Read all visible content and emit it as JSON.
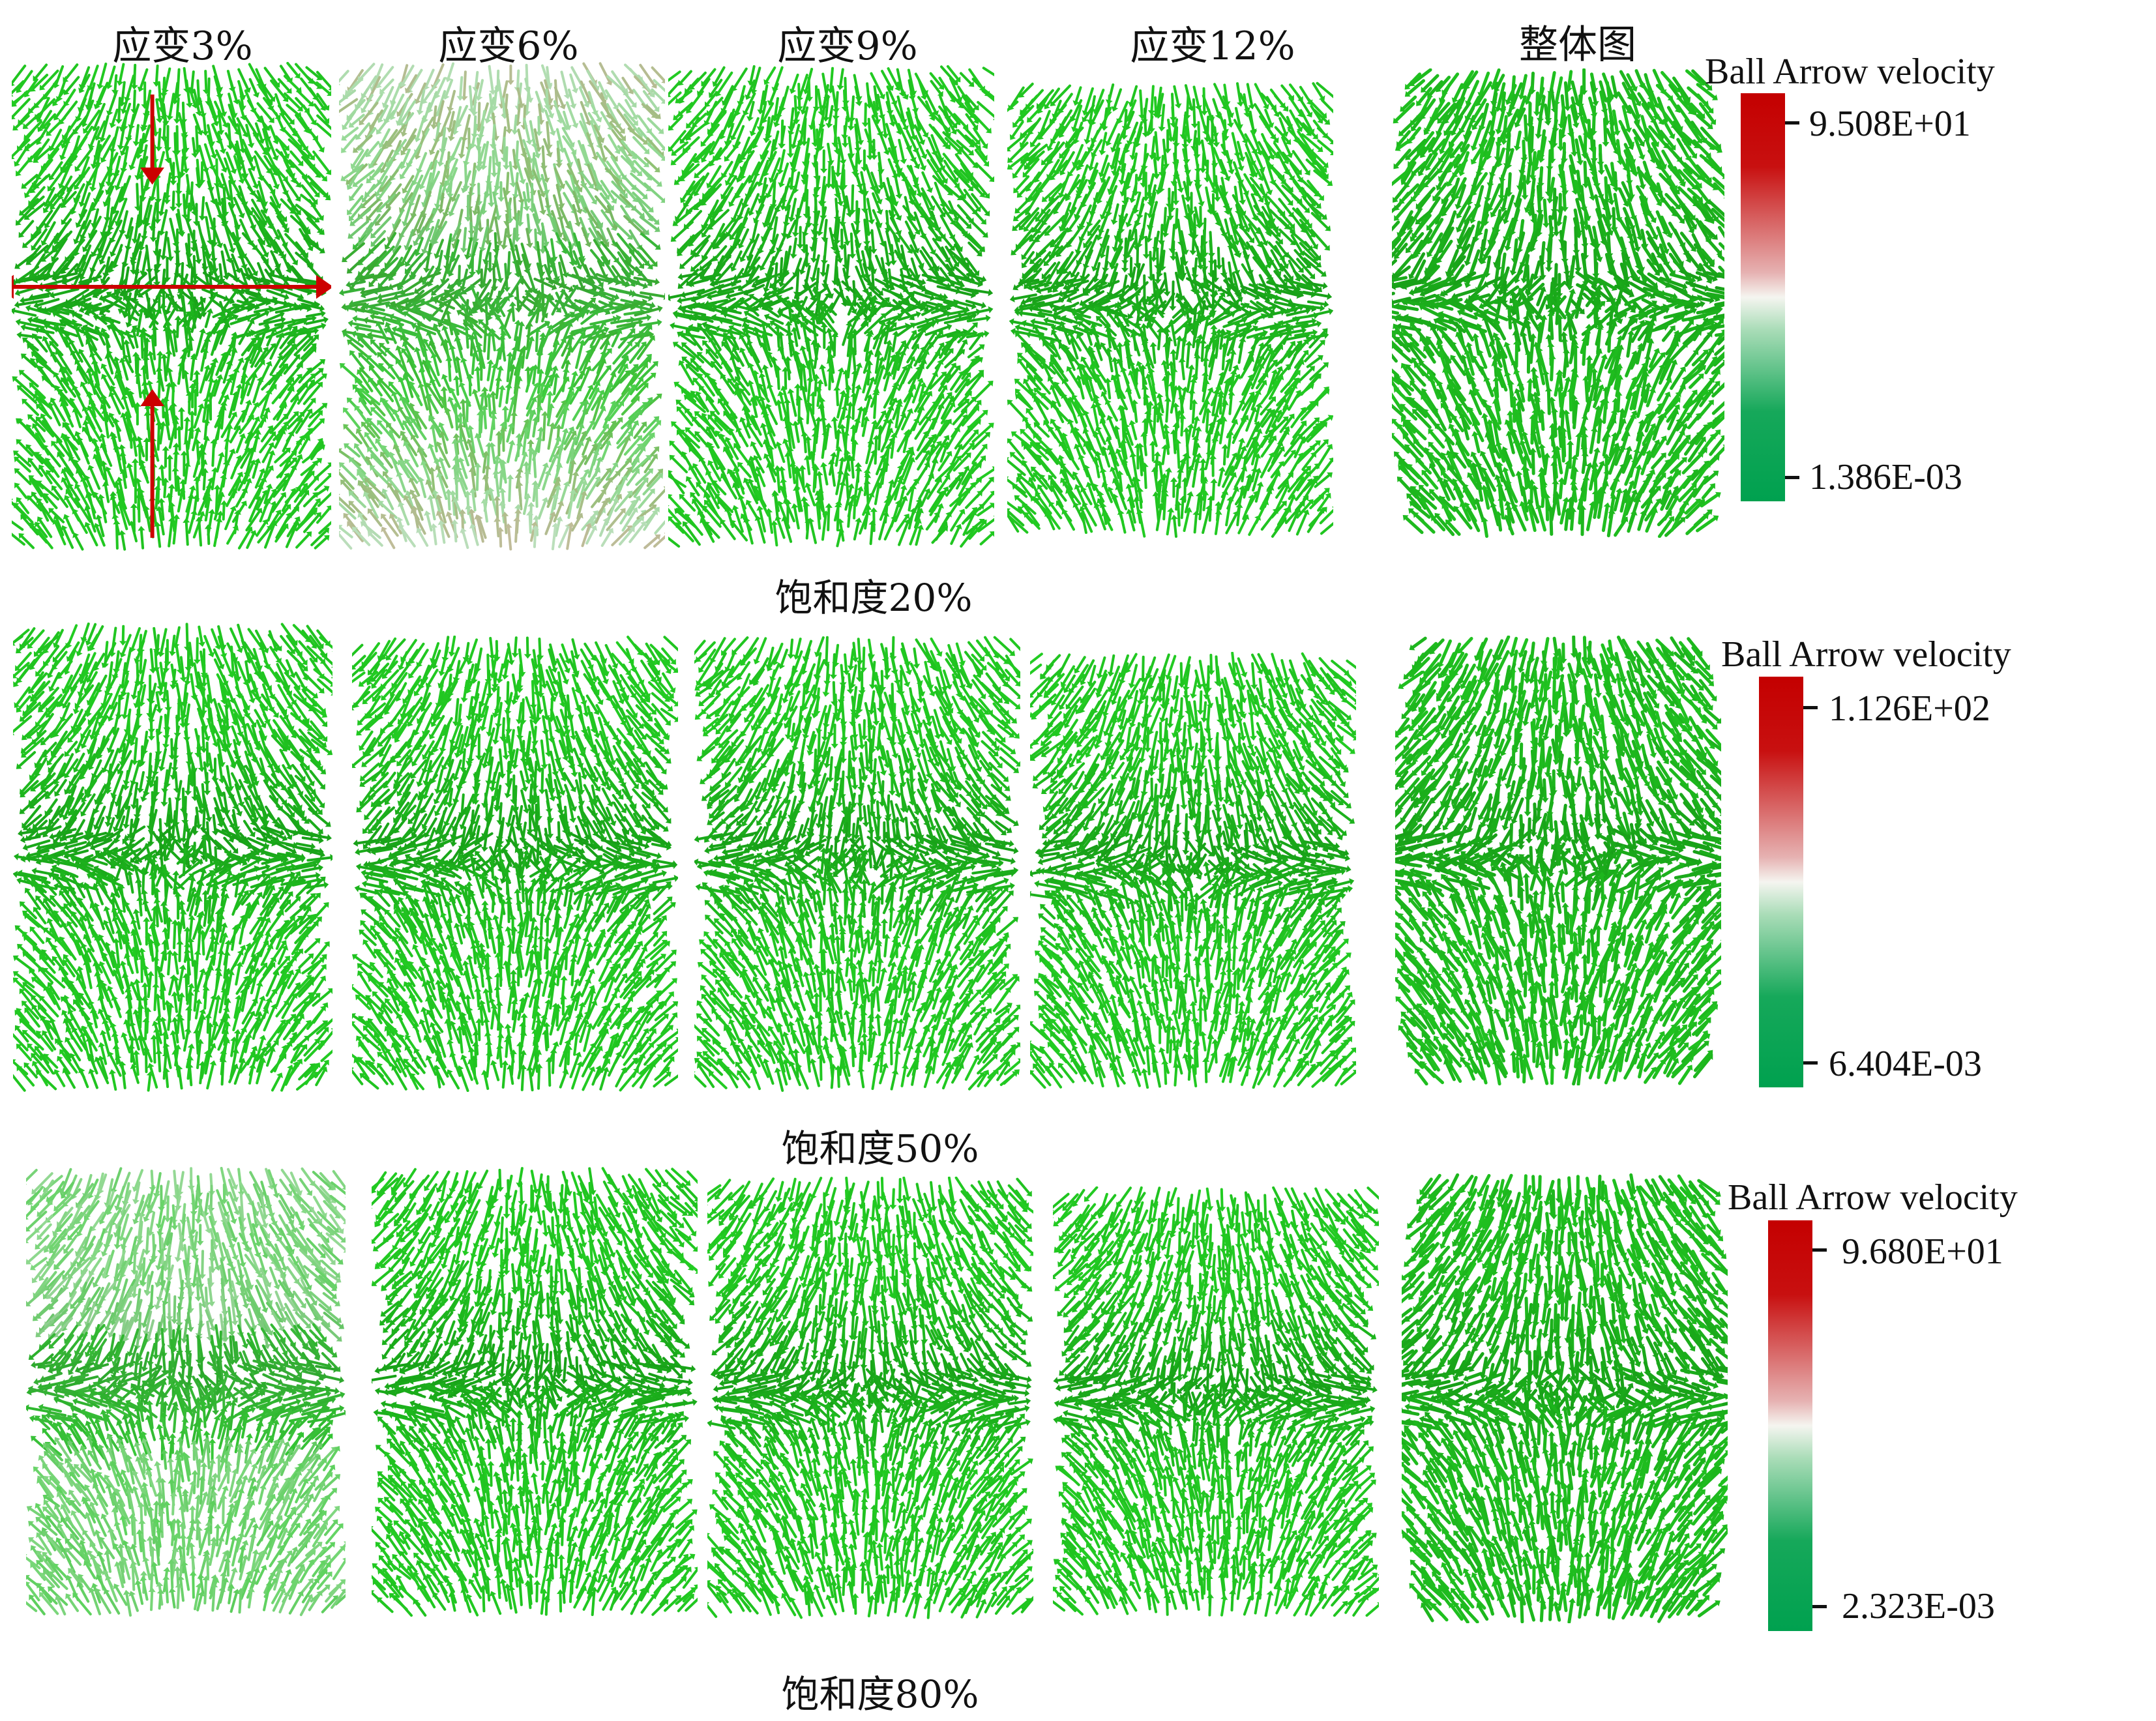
{
  "column_titles": [
    "应变3%",
    "应变6%",
    "应变9%",
    "应变12%",
    "整体图"
  ],
  "rows": [
    {
      "label": "饱和度20%",
      "colorbar": {
        "title": "Ball Arrow velocity",
        "max": "9.508E+01",
        "min": "1.386E-03"
      },
      "panels": [
        {
          "icon": "velocity-arrow-field",
          "tint": "green",
          "markers": "red-loading-arrows"
        },
        {
          "icon": "velocity-arrow-field",
          "tint": "green-white-pink"
        },
        {
          "icon": "velocity-arrow-field",
          "tint": "green"
        },
        {
          "icon": "velocity-arrow-field",
          "tint": "green"
        },
        {
          "icon": "velocity-arrow-field",
          "tint": "green-dense"
        }
      ]
    },
    {
      "label": "饱和度50%",
      "colorbar": {
        "title": "Ball Arrow velocity",
        "max": "1.126E+02",
        "min": "6.404E-03"
      },
      "panels": [
        {
          "icon": "velocity-arrow-field",
          "tint": "green"
        },
        {
          "icon": "velocity-arrow-field",
          "tint": "green"
        },
        {
          "icon": "velocity-arrow-field",
          "tint": "green"
        },
        {
          "icon": "velocity-arrow-field",
          "tint": "green"
        },
        {
          "icon": "velocity-arrow-field",
          "tint": "green-dense"
        }
      ]
    },
    {
      "label": "饱和度80%",
      "colorbar": {
        "title": "Ball Arrow velocity",
        "max": "9.680E+01",
        "min": "2.323E-03"
      },
      "panels": [
        {
          "icon": "velocity-arrow-field",
          "tint": "green-white"
        },
        {
          "icon": "velocity-arrow-field",
          "tint": "green"
        },
        {
          "icon": "velocity-arrow-field",
          "tint": "green"
        },
        {
          "icon": "velocity-arrow-field",
          "tint": "green"
        },
        {
          "icon": "velocity-arrow-field",
          "tint": "green-dense"
        }
      ]
    }
  ],
  "colors": {
    "arrow_green": "#22cc22",
    "arrow_dark": "#138a13",
    "arrow_white": "#e4e4e4",
    "arrow_pink": "#e9b9b9",
    "colorbar_max": "#c40000",
    "colorbar_min": "#00a14f",
    "marker_red": "#cc0000"
  }
}
